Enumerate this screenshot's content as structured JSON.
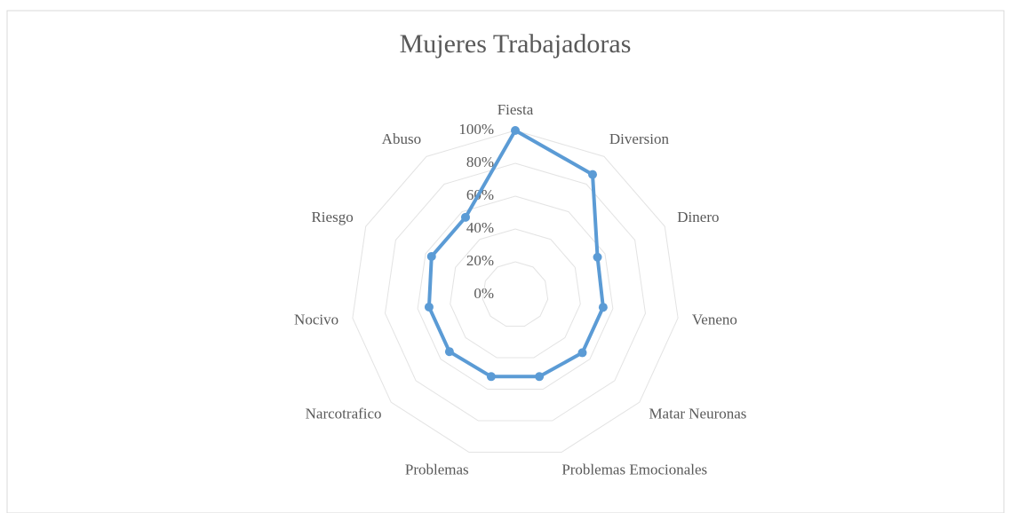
{
  "chart_data": {
    "type": "radar",
    "title": "Mujeres Trabajadoras",
    "categories": [
      "Fiesta",
      "Diversion",
      "Dinero",
      "Veneno",
      "Matar Neuronas",
      "Problemas Emocionales",
      "Problemas",
      "Narcotrafico",
      "Nocivo",
      "Riesgo",
      "Abuso"
    ],
    "series": [
      {
        "name": "Mujeres Trabajadoras",
        "color": "#5b9bd5",
        "values": [
          100,
          87,
          55,
          54,
          54,
          52,
          52,
          53,
          53,
          56,
          56
        ]
      }
    ],
    "ylim": [
      0,
      100
    ],
    "yticks": [
      {
        "value": 0,
        "label": "0%"
      },
      {
        "value": 20,
        "label": "20%"
      },
      {
        "value": 40,
        "label": "40%"
      },
      {
        "value": 60,
        "label": "60%"
      },
      {
        "value": 80,
        "label": "80%"
      },
      {
        "value": 100,
        "label": "100%"
      }
    ],
    "grid": true
  }
}
